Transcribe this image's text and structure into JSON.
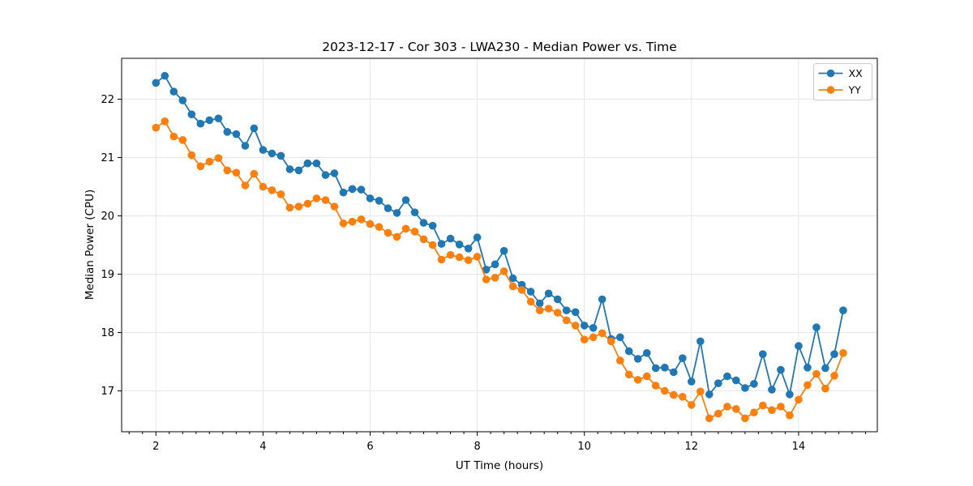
{
  "chart_data": {
    "type": "line",
    "title": "2023-12-17 - Cor 303 - LWA230 - Median Power vs. Time",
    "xlabel": "UT Time (hours)",
    "ylabel": "Median Power (CPU)",
    "xlim": [
      1.36,
      15.47
    ],
    "ylim": [
      16.3,
      22.7
    ],
    "xticks": [
      2,
      4,
      6,
      8,
      10,
      12,
      14
    ],
    "yticks": [
      17,
      18,
      19,
      20,
      21,
      22
    ],
    "x_minor_step": 0.25,
    "grid": true,
    "grid_color": "#e6e6e6",
    "legend_position": "upper right",
    "x": [
      2.0,
      2.167,
      2.333,
      2.5,
      2.667,
      2.833,
      3.0,
      3.167,
      3.333,
      3.5,
      3.667,
      3.833,
      4.0,
      4.167,
      4.333,
      4.5,
      4.667,
      4.833,
      5.0,
      5.167,
      5.333,
      5.5,
      5.667,
      5.833,
      6.0,
      6.167,
      6.333,
      6.5,
      6.667,
      6.833,
      7.0,
      7.167,
      7.333,
      7.5,
      7.667,
      7.833,
      8.0,
      8.167,
      8.333,
      8.5,
      8.667,
      8.833,
      9.0,
      9.167,
      9.333,
      9.5,
      9.667,
      9.833,
      10.0,
      10.167,
      10.333,
      10.5,
      10.667,
      10.833,
      11.0,
      11.167,
      11.333,
      11.5,
      11.667,
      11.833,
      12.0,
      12.167,
      12.333,
      12.5,
      12.667,
      12.833,
      13.0,
      13.167,
      13.333,
      13.5,
      13.667,
      13.833,
      14.0,
      14.167,
      14.333,
      14.5,
      14.667,
      14.833
    ],
    "series": [
      {
        "name": "XX",
        "color": "#1f77b4",
        "values": [
          22.28,
          22.4,
          22.13,
          21.98,
          21.74,
          21.58,
          21.64,
          21.67,
          21.44,
          21.4,
          21.2,
          21.5,
          21.13,
          21.07,
          21.03,
          20.8,
          20.78,
          20.9,
          20.9,
          20.7,
          20.73,
          20.4,
          20.46,
          20.45,
          20.3,
          20.26,
          20.13,
          20.05,
          20.27,
          20.06,
          19.88,
          19.83,
          19.52,
          19.61,
          19.51,
          19.44,
          19.63,
          19.08,
          19.17,
          19.4,
          18.93,
          18.82,
          18.7,
          18.5,
          18.67,
          18.57,
          18.38,
          18.35,
          18.12,
          18.08,
          18.57,
          17.89,
          17.92,
          17.68,
          17.55,
          17.65,
          17.39,
          17.4,
          17.32,
          17.56,
          17.16,
          17.85,
          16.94,
          17.13,
          17.25,
          17.18,
          17.05,
          17.12,
          17.63,
          17.02,
          17.36,
          16.94,
          17.77,
          17.4,
          18.09,
          17.39,
          17.63,
          18.38
        ]
      },
      {
        "name": "YY",
        "color": "#ff7f0e",
        "values": [
          21.51,
          21.62,
          21.36,
          21.3,
          21.04,
          20.85,
          20.93,
          20.99,
          20.78,
          20.74,
          20.52,
          20.72,
          20.5,
          20.44,
          20.37,
          20.14,
          20.16,
          20.21,
          20.3,
          20.27,
          20.16,
          19.87,
          19.9,
          19.94,
          19.86,
          19.81,
          19.71,
          19.64,
          19.78,
          19.73,
          19.6,
          19.5,
          19.25,
          19.33,
          19.29,
          19.24,
          19.3,
          18.91,
          18.94,
          19.05,
          18.79,
          18.73,
          18.53,
          18.38,
          18.41,
          18.34,
          18.21,
          18.12,
          17.88,
          17.92,
          17.99,
          17.85,
          17.52,
          17.28,
          17.19,
          17.25,
          17.09,
          17.0,
          16.93,
          16.9,
          16.76,
          16.99,
          16.53,
          16.61,
          16.73,
          16.69,
          16.53,
          16.63,
          16.75,
          16.67,
          16.73,
          16.58,
          16.85,
          17.1,
          17.29,
          17.04,
          17.26,
          17.65
        ]
      }
    ]
  }
}
